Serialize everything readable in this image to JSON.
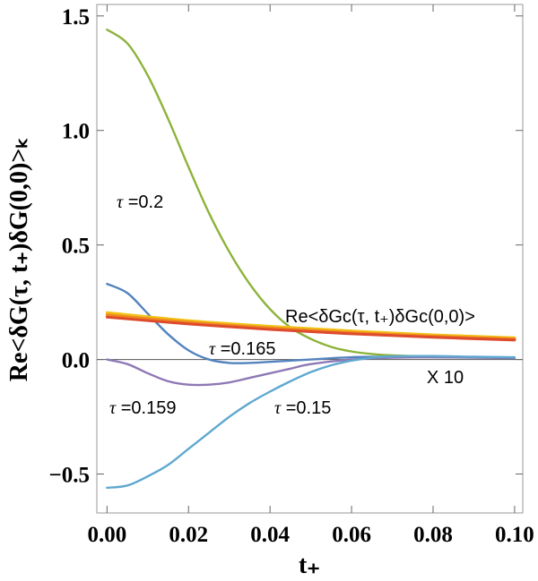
{
  "chart_data": {
    "type": "line",
    "xlabel": "t₊",
    "ylabel": "Re<δG(τ, t₊)δG(0,0)>ₖ",
    "xlim": [
      -0.0025,
      0.102
    ],
    "ylim": [
      -0.67,
      1.55
    ],
    "x_ticks": [
      0.0,
      0.02,
      0.04,
      0.06,
      0.08,
      0.1
    ],
    "x_tick_labels": [
      "0.00",
      "0.02",
      "0.04",
      "0.06",
      "0.08",
      "0.10"
    ],
    "y_ticks": [
      -0.5,
      0.0,
      0.5,
      1.0,
      1.5
    ],
    "y_tick_labels": [
      "−0.5",
      "0.0",
      "0.5",
      "1.0",
      "1.5"
    ],
    "zero_line": true,
    "series": [
      {
        "name": "τ =0.2",
        "color": "#8db23a",
        "x": [
          0,
          0.005,
          0.01,
          0.015,
          0.02,
          0.025,
          0.03,
          0.035,
          0.04,
          0.045,
          0.05,
          0.055,
          0.06,
          0.065,
          0.07,
          0.08,
          0.09,
          0.1
        ],
        "y": [
          1.44,
          1.38,
          1.24,
          1.05,
          0.84,
          0.64,
          0.47,
          0.33,
          0.22,
          0.14,
          0.09,
          0.055,
          0.035,
          0.024,
          0.018,
          0.012,
          0.01,
          0.008
        ]
      },
      {
        "name": "τ =0.165",
        "color": "#5383bd",
        "x": [
          0,
          0.005,
          0.01,
          0.015,
          0.02,
          0.025,
          0.03,
          0.035,
          0.04,
          0.05,
          0.06,
          0.07,
          0.08,
          0.09,
          0.1
        ],
        "y": [
          0.33,
          0.29,
          0.2,
          0.11,
          0.04,
          0.0,
          -0.015,
          -0.015,
          -0.01,
          0.0,
          0.01,
          0.012,
          0.01,
          0.008,
          0.006
        ]
      },
      {
        "name": "τ =0.159",
        "color": "#8d78b6",
        "x": [
          0,
          0.005,
          0.01,
          0.015,
          0.02,
          0.025,
          0.03,
          0.035,
          0.04,
          0.045,
          0.05,
          0.06,
          0.07,
          0.08,
          0.09,
          0.1
        ],
        "y": [
          0.0,
          -0.02,
          -0.06,
          -0.095,
          -0.11,
          -0.11,
          -0.1,
          -0.08,
          -0.06,
          -0.04,
          -0.02,
          0.0,
          0.008,
          0.01,
          0.009,
          0.008
        ]
      },
      {
        "name": "τ =0.15",
        "color": "#5fa8d0",
        "x": [
          0,
          0.005,
          0.01,
          0.015,
          0.02,
          0.025,
          0.03,
          0.035,
          0.04,
          0.045,
          0.05,
          0.055,
          0.06,
          0.065,
          0.07,
          0.08,
          0.09,
          0.1
        ],
        "y": [
          -0.56,
          -0.55,
          -0.51,
          -0.46,
          -0.39,
          -0.32,
          -0.25,
          -0.19,
          -0.14,
          -0.095,
          -0.055,
          -0.025,
          -0.005,
          0.008,
          0.014,
          0.015,
          0.012,
          0.01
        ]
      },
      {
        "name": "Re<δGc(τ, t₊)δGc(0,0)> X 10 (yellow)",
        "color": "#f2c318",
        "x": [
          0,
          0.02,
          0.04,
          0.06,
          0.08,
          0.1
        ],
        "y": [
          0.205,
          0.17,
          0.145,
          0.125,
          0.108,
          0.095
        ]
      },
      {
        "name": "Re<δGc(τ, t₊)δGc(0,0)> X 10 (orange)",
        "color": "#ee8a1e",
        "x": [
          0,
          0.02,
          0.04,
          0.06,
          0.08,
          0.1
        ],
        "y": [
          0.195,
          0.163,
          0.138,
          0.118,
          0.102,
          0.09
        ]
      },
      {
        "name": "Re<δGc(τ, t₊)δGc(0,0)> X 10 (red)",
        "color": "#de4a2c",
        "x": [
          0,
          0.02,
          0.04,
          0.06,
          0.08,
          0.1
        ],
        "y": [
          0.185,
          0.155,
          0.131,
          0.112,
          0.097,
          0.085
        ]
      }
    ],
    "annotations": [
      {
        "prefix": "τ",
        "text": " =0.2"
      },
      {
        "prefix": "τ",
        "text": " =0.165"
      },
      {
        "prefix": "τ",
        "text": " =0.159"
      },
      {
        "prefix": "τ",
        "text": " =0.15"
      },
      {
        "text": "Re<δGc(τ, t₊)δGc(0,0)>"
      },
      {
        "text": "X 10"
      }
    ]
  }
}
